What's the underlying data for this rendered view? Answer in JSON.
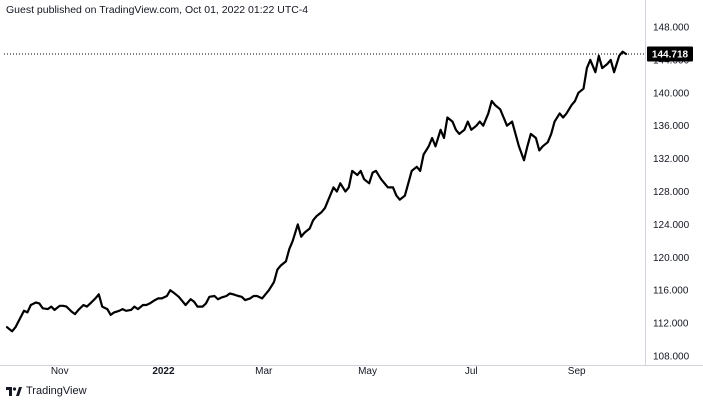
{
  "header": {
    "published_text": "Guest published on TradingView.com, Oct 01, 2022 01:22 UTC-4"
  },
  "footer": {
    "brand": "TradingView",
    "logo_icon": "tradingview-logo-icon"
  },
  "last_price": {
    "label": "144.718",
    "value": 144.718
  },
  "colors": {
    "line": "#000000",
    "axis": "#131722",
    "price_label_bg": "#000000",
    "border": "#d1d4dc"
  },
  "chart_data": {
    "type": "line",
    "y_scale": "linear",
    "ylim": [
      108,
      148
    ],
    "xlim": [
      "2021-10-01",
      "2022-09-30"
    ],
    "grid": false,
    "y_ticks": [
      {
        "value": 148,
        "label": "148.000"
      },
      {
        "value": 144,
        "label": "144.000"
      },
      {
        "value": 140,
        "label": "140.000"
      },
      {
        "value": 136,
        "label": "136.000"
      },
      {
        "value": 132,
        "label": "132.000"
      },
      {
        "value": 128,
        "label": "128.000"
      },
      {
        "value": 124,
        "label": "124.000"
      },
      {
        "value": 120,
        "label": "120.000"
      },
      {
        "value": 116,
        "label": "116.000"
      },
      {
        "value": 112,
        "label": "112.000"
      },
      {
        "value": 108,
        "label": "108.000"
      }
    ],
    "x_ticks": [
      {
        "date": "2021-11-01",
        "label": "Nov",
        "bold": false
      },
      {
        "date": "2022-01-01",
        "label": "2022",
        "bold": true
      },
      {
        "date": "2022-03-01",
        "label": "Mar",
        "bold": false
      },
      {
        "date": "2022-05-01",
        "label": "May",
        "bold": false
      },
      {
        "date": "2022-07-01",
        "label": "Jul",
        "bold": false
      },
      {
        "date": "2022-09-01",
        "label": "Sep",
        "bold": false
      }
    ],
    "series": [
      {
        "points": [
          [
            "2021-10-01",
            111.5
          ],
          [
            "2021-10-04",
            111.0
          ],
          [
            "2021-10-06",
            111.5
          ],
          [
            "2021-10-08",
            112.3
          ],
          [
            "2021-10-11",
            113.5
          ],
          [
            "2021-10-13",
            113.3
          ],
          [
            "2021-10-15",
            114.2
          ],
          [
            "2021-10-18",
            114.5
          ],
          [
            "2021-10-20",
            114.4
          ],
          [
            "2021-10-22",
            113.8
          ],
          [
            "2021-10-25",
            113.7
          ],
          [
            "2021-10-27",
            114.0
          ],
          [
            "2021-10-29",
            113.6
          ],
          [
            "2021-11-01",
            114.1
          ],
          [
            "2021-11-03",
            114.1
          ],
          [
            "2021-11-05",
            114.0
          ],
          [
            "2021-11-08",
            113.4
          ],
          [
            "2021-11-10",
            113.1
          ],
          [
            "2021-11-12",
            113.6
          ],
          [
            "2021-11-15",
            114.2
          ],
          [
            "2021-11-17",
            114.0
          ],
          [
            "2021-11-19",
            114.4
          ],
          [
            "2021-11-22",
            115.0
          ],
          [
            "2021-11-24",
            115.5
          ],
          [
            "2021-11-26",
            114.0
          ],
          [
            "2021-11-29",
            113.7
          ],
          [
            "2021-12-01",
            113.0
          ],
          [
            "2021-12-03",
            113.3
          ],
          [
            "2021-12-06",
            113.5
          ],
          [
            "2021-12-08",
            113.7
          ],
          [
            "2021-12-10",
            113.5
          ],
          [
            "2021-12-13",
            113.6
          ],
          [
            "2021-12-15",
            114.0
          ],
          [
            "2021-12-17",
            113.7
          ],
          [
            "2021-12-20",
            114.2
          ],
          [
            "2021-12-22",
            114.2
          ],
          [
            "2021-12-24",
            114.4
          ],
          [
            "2021-12-27",
            114.8
          ],
          [
            "2021-12-29",
            115.0
          ],
          [
            "2021-12-31",
            115.0
          ],
          [
            "2022-01-03",
            115.3
          ],
          [
            "2022-01-05",
            116.0
          ],
          [
            "2022-01-07",
            115.7
          ],
          [
            "2022-01-10",
            115.2
          ],
          [
            "2022-01-12",
            114.7
          ],
          [
            "2022-01-14",
            114.2
          ],
          [
            "2022-01-17",
            114.9
          ],
          [
            "2022-01-19",
            114.6
          ],
          [
            "2022-01-21",
            114.0
          ],
          [
            "2022-01-24",
            114.0
          ],
          [
            "2022-01-26",
            114.4
          ],
          [
            "2022-01-28",
            115.2
          ],
          [
            "2022-01-31",
            115.3
          ],
          [
            "2022-02-02",
            114.9
          ],
          [
            "2022-02-04",
            115.1
          ],
          [
            "2022-02-07",
            115.3
          ],
          [
            "2022-02-09",
            115.6
          ],
          [
            "2022-02-11",
            115.5
          ],
          [
            "2022-02-14",
            115.3
          ],
          [
            "2022-02-16",
            115.2
          ],
          [
            "2022-02-18",
            114.8
          ],
          [
            "2022-02-21",
            115.0
          ],
          [
            "2022-02-23",
            115.3
          ],
          [
            "2022-02-25",
            115.3
          ],
          [
            "2022-02-28",
            115.0
          ],
          [
            "2022-03-02",
            115.5
          ],
          [
            "2022-03-04",
            116.0
          ],
          [
            "2022-03-07",
            117.0
          ],
          [
            "2022-03-09",
            118.5
          ],
          [
            "2022-03-11",
            119.0
          ],
          [
            "2022-03-14",
            119.5
          ],
          [
            "2022-03-16",
            121.0
          ],
          [
            "2022-03-18",
            122.0
          ],
          [
            "2022-03-21",
            124.0
          ],
          [
            "2022-03-23",
            122.5
          ],
          [
            "2022-03-25",
            123.0
          ],
          [
            "2022-03-28",
            123.5
          ],
          [
            "2022-03-30",
            124.5
          ],
          [
            "2022-04-01",
            125.0
          ],
          [
            "2022-04-04",
            125.5
          ],
          [
            "2022-04-06",
            126.0
          ],
          [
            "2022-04-08",
            127.0
          ],
          [
            "2022-04-11",
            128.5
          ],
          [
            "2022-04-13",
            128.0
          ],
          [
            "2022-04-15",
            129.0
          ],
          [
            "2022-04-18",
            128.0
          ],
          [
            "2022-04-20",
            128.5
          ],
          [
            "2022-04-22",
            130.5
          ],
          [
            "2022-04-25",
            130.0
          ],
          [
            "2022-04-27",
            130.5
          ],
          [
            "2022-04-29",
            129.5
          ],
          [
            "2022-05-02",
            129.0
          ],
          [
            "2022-05-04",
            130.3
          ],
          [
            "2022-05-06",
            130.5
          ],
          [
            "2022-05-09",
            129.5
          ],
          [
            "2022-05-11",
            129.0
          ],
          [
            "2022-05-13",
            128.5
          ],
          [
            "2022-05-16",
            128.5
          ],
          [
            "2022-05-18",
            127.5
          ],
          [
            "2022-05-20",
            127.0
          ],
          [
            "2022-05-23",
            127.5
          ],
          [
            "2022-05-25",
            129.0
          ],
          [
            "2022-05-27",
            130.5
          ],
          [
            "2022-05-30",
            131.0
          ],
          [
            "2022-06-01",
            130.5
          ],
          [
            "2022-06-03",
            132.5
          ],
          [
            "2022-06-06",
            133.5
          ],
          [
            "2022-06-08",
            134.5
          ],
          [
            "2022-06-10",
            133.5
          ],
          [
            "2022-06-13",
            135.5
          ],
          [
            "2022-06-15",
            134.5
          ],
          [
            "2022-06-17",
            137.0
          ],
          [
            "2022-06-20",
            136.5
          ],
          [
            "2022-06-22",
            135.5
          ],
          [
            "2022-06-24",
            135.0
          ],
          [
            "2022-06-27",
            135.5
          ],
          [
            "2022-06-29",
            136.5
          ],
          [
            "2022-07-01",
            135.5
          ],
          [
            "2022-07-04",
            136.0
          ],
          [
            "2022-07-06",
            136.5
          ],
          [
            "2022-07-08",
            136.0
          ],
          [
            "2022-07-11",
            137.5
          ],
          [
            "2022-07-13",
            139.0
          ],
          [
            "2022-07-15",
            138.5
          ],
          [
            "2022-07-18",
            138.0
          ],
          [
            "2022-07-20",
            137.0
          ],
          [
            "2022-07-22",
            136.0
          ],
          [
            "2022-07-25",
            136.5
          ],
          [
            "2022-07-27",
            135.0
          ],
          [
            "2022-07-29",
            133.5
          ],
          [
            "2022-08-01",
            131.8
          ],
          [
            "2022-08-03",
            133.5
          ],
          [
            "2022-08-05",
            135.0
          ],
          [
            "2022-08-08",
            134.5
          ],
          [
            "2022-08-10",
            133.0
          ],
          [
            "2022-08-12",
            133.5
          ],
          [
            "2022-08-15",
            134.0
          ],
          [
            "2022-08-17",
            135.0
          ],
          [
            "2022-08-19",
            136.5
          ],
          [
            "2022-08-22",
            137.5
          ],
          [
            "2022-08-24",
            137.0
          ],
          [
            "2022-08-26",
            137.5
          ],
          [
            "2022-08-29",
            138.5
          ],
          [
            "2022-08-31",
            139.0
          ],
          [
            "2022-09-02",
            140.0
          ],
          [
            "2022-09-05",
            140.5
          ],
          [
            "2022-09-07",
            143.0
          ],
          [
            "2022-09-09",
            144.0
          ],
          [
            "2022-09-12",
            142.5
          ],
          [
            "2022-09-14",
            144.5
          ],
          [
            "2022-09-16",
            143.0
          ],
          [
            "2022-09-19",
            143.5
          ],
          [
            "2022-09-21",
            144.0
          ],
          [
            "2022-09-23",
            142.5
          ],
          [
            "2022-09-26",
            144.5
          ],
          [
            "2022-09-28",
            145.0
          ],
          [
            "2022-09-30",
            144.718
          ]
        ]
      }
    ]
  }
}
